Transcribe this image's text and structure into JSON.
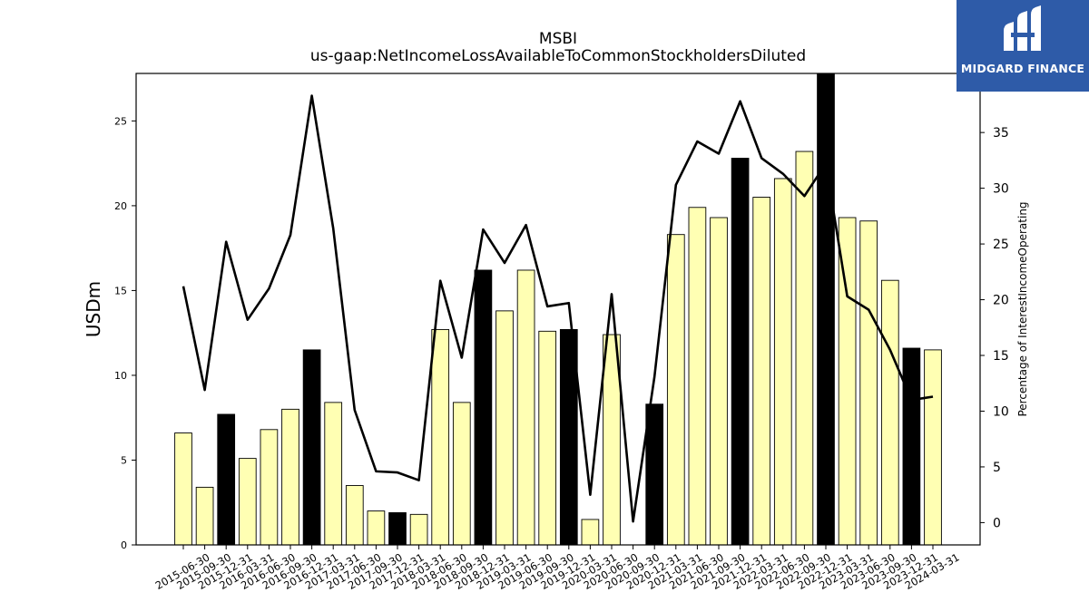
{
  "chart_data": {
    "type": "bar",
    "title": "MSBI",
    "subtitle": "us-gaap:NetIncomeLossAvailableToCommonStockholdersDiluted",
    "ylabel": "USDm",
    "y2label": "Percentage of InterestIncomeOperating",
    "ylim": [
      0,
      27.8
    ],
    "y2lim": [
      -2,
      40.3
    ],
    "yticks": [
      0,
      5,
      10,
      15,
      20,
      25
    ],
    "y2ticks": [
      0,
      5,
      10,
      15,
      20,
      25,
      30,
      35
    ],
    "categories": [
      "2015-06-30",
      "2015-09-30",
      "2015-12-31",
      "2016-03-31",
      "2016-06-30",
      "2016-09-30",
      "2016-12-31",
      "2017-03-31",
      "2017-06-30",
      "2017-09-30",
      "2017-12-31",
      "2018-03-31",
      "2018-06-30",
      "2018-09-30",
      "2018-12-31",
      "2019-03-31",
      "2019-06-30",
      "2019-09-30",
      "2019-12-31",
      "2020-03-31",
      "2020-06-30",
      "2020-09-30",
      "2020-12-31",
      "2021-03-31",
      "2021-06-30",
      "2021-09-30",
      "2021-12-31",
      "2022-03-31",
      "2022-06-30",
      "2022-09-30",
      "2022-12-31",
      "2023-03-31",
      "2023-06-30",
      "2023-09-30",
      "2023-12-31",
      "2024-03-31"
    ],
    "series": [
      {
        "kind": "bar",
        "values": [
          6.6,
          3.4,
          7.7,
          5.1,
          6.8,
          8.0,
          11.5,
          8.4,
          3.5,
          2.0,
          1.9,
          1.8,
          12.7,
          8.4,
          16.2,
          13.8,
          16.2,
          12.6,
          12.7,
          1.5,
          12.4,
          0,
          8.3,
          18.3,
          19.9,
          19.3,
          22.8,
          20.5,
          21.6,
          23.2,
          27.8,
          19.3,
          19.1,
          15.6,
          11.6,
          11.5
        ],
        "highlight": [
          false,
          false,
          true,
          false,
          false,
          false,
          true,
          false,
          false,
          false,
          true,
          false,
          false,
          false,
          true,
          false,
          false,
          false,
          true,
          false,
          false,
          false,
          true,
          false,
          false,
          false,
          true,
          false,
          false,
          false,
          true,
          false,
          false,
          false,
          true,
          false
        ]
      },
      {
        "kind": "line",
        "axis": "right",
        "values": [
          21.2,
          11.9,
          25.2,
          18.2,
          21.0,
          25.8,
          38.3,
          26.4,
          10.1,
          4.6,
          4.5,
          3.8,
          21.7,
          14.8,
          26.3,
          23.3,
          26.7,
          19.4,
          19.7,
          2.5,
          20.5,
          0.1,
          13.1,
          30.3,
          34.2,
          33.1,
          37.8,
          32.7,
          31.3,
          29.3,
          32.2,
          20.3,
          19.1,
          15.5,
          11.0,
          11.3
        ]
      }
    ],
    "colors": {
      "bar_fill": "#ffffb3",
      "bar_highlight": "#000000",
      "bar_edge": "#000000",
      "line": "#000000"
    },
    "grid": false
  },
  "logo": {
    "text": "MIDGARD FINANCE",
    "background": "#2e5ba8"
  }
}
